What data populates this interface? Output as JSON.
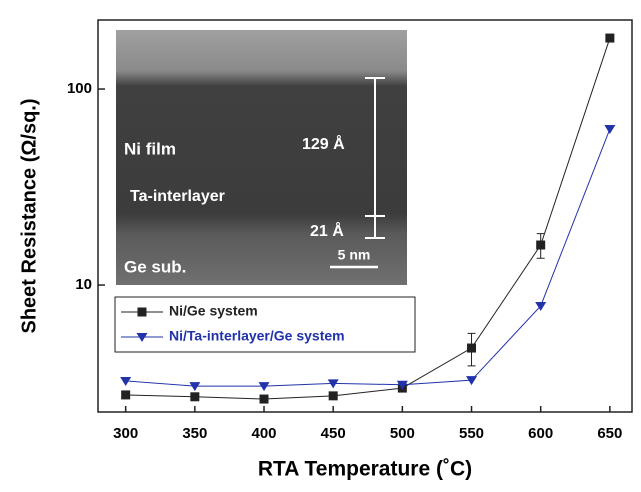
{
  "chart_data": {
    "type": "line",
    "x_label": "RTA Temperature (˚C)",
    "y_label": "Sheet Resistance (Ω/sq.)",
    "x": [
      300,
      350,
      400,
      450,
      500,
      550,
      600,
      650
    ],
    "xlim": [
      280,
      666
    ],
    "xticks": [
      300,
      350,
      400,
      450,
      500,
      550,
      600,
      650
    ],
    "ylim": [
      2.25,
      225
    ],
    "yticks": [
      10,
      100
    ],
    "log_y": true,
    "legend": "lower left",
    "series": [
      {
        "name": "Ni/Ge system",
        "color": "#222222",
        "marker": "square",
        "values": [
          2.75,
          2.69,
          2.62,
          2.72,
          2.98,
          4.77,
          16.0,
          182
        ],
        "errors": [
          null,
          null,
          null,
          null,
          null,
          0.9,
          2.3,
          null
        ]
      },
      {
        "name": "Ni/Ta-interlayer/Ge system",
        "color": "#2233aa",
        "marker": "triangle",
        "values": [
          3.24,
          3.05,
          3.05,
          3.15,
          3.1,
          3.27,
          7.82,
          62.5
        ]
      }
    ],
    "inset": {
      "film": "Ni film",
      "thickness_top": "129 Å",
      "interlayer": "Ta-interlayer",
      "thickness_bottom": "21 Å",
      "substrate": "Ge sub.",
      "scale": "5 nm"
    }
  }
}
